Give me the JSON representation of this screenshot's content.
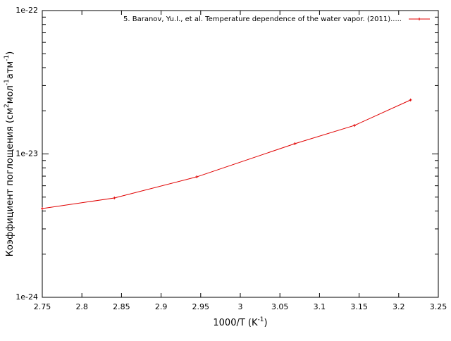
{
  "chart_data": {
    "type": "line",
    "log_y": true,
    "grid": false,
    "legend": "top-right",
    "xlabel": [
      "1000/T (K",
      "-1",
      ")"
    ],
    "ylabel": [
      "Коэффициент поглощения (см",
      "2",
      "мол",
      "-1",
      "атм",
      "-1",
      ")"
    ],
    "x": [
      2.75,
      2.841,
      2.945,
      3.069,
      3.144,
      3.215
    ],
    "series": [
      {
        "name": "5. Baranov, Yu.I., et al. Temperature dependence of the water vapor. (2011).....",
        "color": "#e00000",
        "values": [
          4.16e-24,
          4.93e-24,
          6.92e-24,
          1.18e-23,
          1.58e-23,
          2.38e-23
        ]
      }
    ],
    "xlim": [
      2.75,
      3.25
    ],
    "xticks": [
      2.75,
      2.8,
      2.85,
      2.9,
      2.95,
      3,
      3.05,
      3.1,
      3.15,
      3.2,
      3.25
    ],
    "ylim": [
      1e-24,
      1e-22
    ],
    "yticks": [
      {
        "value": 1e-24,
        "label": "1e-24"
      },
      {
        "value": 1e-23,
        "label": "1e-23"
      },
      {
        "value": 1e-22,
        "label": "1e-22"
      }
    ]
  }
}
